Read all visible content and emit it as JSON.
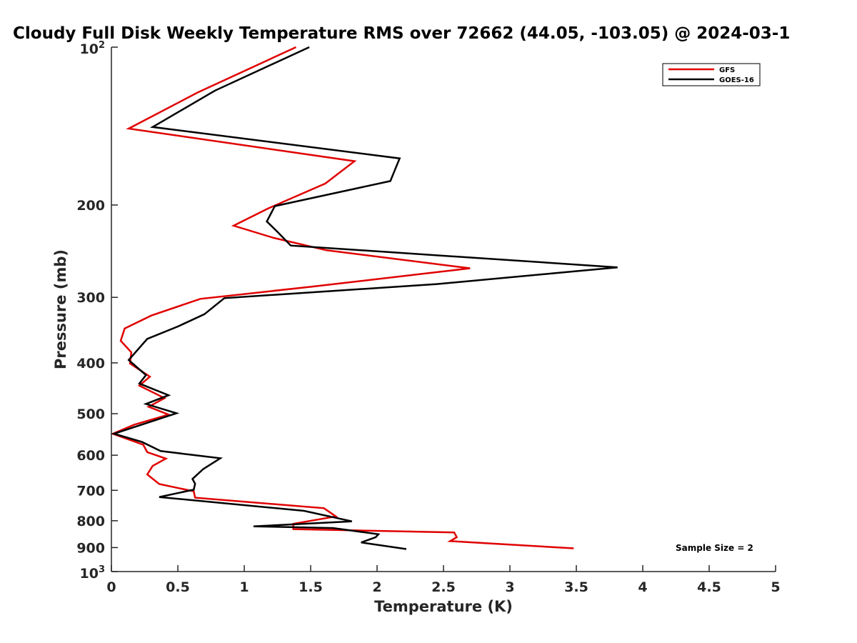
{
  "chart_data": {
    "type": "line",
    "title": "Cloudy Full Disk Weekly Temperature RMS over 72662 (44.05, -103.05) @ 2024-03-1",
    "xlabel": "Temperature (K)",
    "ylabel": "Pressure (mb)",
    "xlim": [
      0,
      5
    ],
    "ylim": [
      100,
      1000
    ],
    "y_scale": "log",
    "y_reversed": true,
    "x_ticks": [
      "0",
      "0.5",
      "1",
      "1.5",
      "2",
      "2.5",
      "3",
      "3.5",
      "4",
      "4.5",
      "5"
    ],
    "y_ticks": [
      {
        "value": 100,
        "base": "10",
        "exp": "2"
      },
      {
        "value": 200,
        "label": "200"
      },
      {
        "value": 300,
        "label": "300"
      },
      {
        "value": 400,
        "label": "400"
      },
      {
        "value": 500,
        "label": "500"
      },
      {
        "value": 600,
        "label": "600"
      },
      {
        "value": 700,
        "label": "700"
      },
      {
        "value": 800,
        "label": "800"
      },
      {
        "value": 900,
        "label": "900"
      },
      {
        "value": 1000,
        "base": "10",
        "exp": "3"
      }
    ],
    "grid": false,
    "legend_position": "top-right",
    "annotation": "Sample Size = 2",
    "series": [
      {
        "name": "GFS",
        "color": "#e00000",
        "points": [
          {
            "x": 1.39,
            "p": 100
          },
          {
            "x": 0.65,
            "p": 122
          },
          {
            "x": 0.13,
            "p": 143
          },
          {
            "x": 1.83,
            "p": 165
          },
          {
            "x": 1.61,
            "p": 182
          },
          {
            "x": 1.18,
            "p": 203
          },
          {
            "x": 0.92,
            "p": 219
          },
          {
            "x": 1.22,
            "p": 231
          },
          {
            "x": 1.62,
            "p": 244
          },
          {
            "x": 2.7,
            "p": 264
          },
          {
            "x": 1.52,
            "p": 286
          },
          {
            "x": 0.67,
            "p": 302
          },
          {
            "x": 0.3,
            "p": 325
          },
          {
            "x": 0.1,
            "p": 344
          },
          {
            "x": 0.07,
            "p": 363
          },
          {
            "x": 0.15,
            "p": 382
          },
          {
            "x": 0.14,
            "p": 401
          },
          {
            "x": 0.29,
            "p": 425
          },
          {
            "x": 0.21,
            "p": 442
          },
          {
            "x": 0.4,
            "p": 467
          },
          {
            "x": 0.28,
            "p": 485
          },
          {
            "x": 0.43,
            "p": 502
          },
          {
            "x": 0.17,
            "p": 525
          },
          {
            "x": 0.01,
            "p": 546
          },
          {
            "x": 0.24,
            "p": 573
          },
          {
            "x": 0.27,
            "p": 592
          },
          {
            "x": 0.41,
            "p": 609
          },
          {
            "x": 0.31,
            "p": 629
          },
          {
            "x": 0.27,
            "p": 653
          },
          {
            "x": 0.36,
            "p": 681
          },
          {
            "x": 0.62,
            "p": 703
          },
          {
            "x": 0.63,
            "p": 723
          },
          {
            "x": 1.6,
            "p": 757
          },
          {
            "x": 1.69,
            "p": 785
          },
          {
            "x": 1.37,
            "p": 811
          },
          {
            "x": 1.37,
            "p": 830
          },
          {
            "x": 2.58,
            "p": 842
          },
          {
            "x": 2.6,
            "p": 860
          },
          {
            "x": 2.55,
            "p": 875
          },
          {
            "x": 3.48,
            "p": 903
          }
        ]
      },
      {
        "name": "GOES-16",
        "color": "#000000",
        "points": [
          {
            "x": 1.49,
            "p": 100
          },
          {
            "x": 0.78,
            "p": 121
          },
          {
            "x": 0.31,
            "p": 142
          },
          {
            "x": 2.17,
            "p": 163
          },
          {
            "x": 2.1,
            "p": 180
          },
          {
            "x": 1.23,
            "p": 201
          },
          {
            "x": 1.17,
            "p": 215
          },
          {
            "x": 1.25,
            "p": 225
          },
          {
            "x": 1.35,
            "p": 239
          },
          {
            "x": 3.81,
            "p": 263
          },
          {
            "x": 2.45,
            "p": 283
          },
          {
            "x": 0.85,
            "p": 301
          },
          {
            "x": 0.7,
            "p": 323
          },
          {
            "x": 0.5,
            "p": 341
          },
          {
            "x": 0.27,
            "p": 360
          },
          {
            "x": 0.13,
            "p": 395
          },
          {
            "x": 0.26,
            "p": 422
          },
          {
            "x": 0.21,
            "p": 438
          },
          {
            "x": 0.43,
            "p": 461
          },
          {
            "x": 0.26,
            "p": 479
          },
          {
            "x": 0.49,
            "p": 499
          },
          {
            "x": 0.02,
            "p": 546
          },
          {
            "x": 0.23,
            "p": 566
          },
          {
            "x": 0.37,
            "p": 589
          },
          {
            "x": 0.82,
            "p": 608
          },
          {
            "x": 0.69,
            "p": 638
          },
          {
            "x": 0.61,
            "p": 666
          },
          {
            "x": 0.63,
            "p": 680
          },
          {
            "x": 0.62,
            "p": 698
          },
          {
            "x": 0.36,
            "p": 721
          },
          {
            "x": 1.45,
            "p": 766
          },
          {
            "x": 1.81,
            "p": 802
          },
          {
            "x": 1.07,
            "p": 820
          },
          {
            "x": 1.67,
            "p": 826
          },
          {
            "x": 2.01,
            "p": 849
          },
          {
            "x": 1.99,
            "p": 860
          },
          {
            "x": 1.88,
            "p": 880
          },
          {
            "x": 2.22,
            "p": 906
          }
        ]
      }
    ]
  }
}
